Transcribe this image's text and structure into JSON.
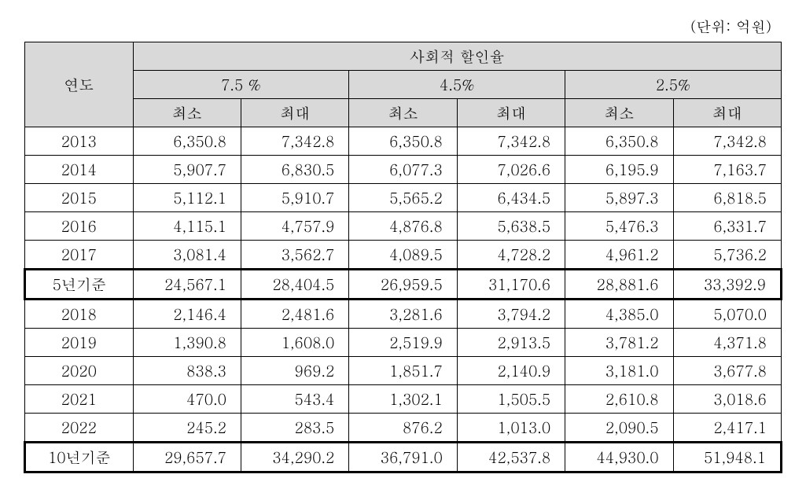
{
  "unit_label": "(단위: 억원)",
  "header": {
    "row_label": "연도",
    "group_label": "사회적 할인율",
    "rates": [
      "7.5 %",
      "4.5%",
      "2.5%"
    ],
    "sub": [
      "최소",
      "최대"
    ]
  },
  "rows": [
    {
      "year": "2013",
      "v": [
        "6,350.8",
        "7,342.8",
        "6,350.8",
        "7,342.8",
        "6,350.8",
        "7,342.8"
      ]
    },
    {
      "year": "2014",
      "v": [
        "5,907.7",
        "6,830.5",
        "6,077.3",
        "7,026.6",
        "6,195.9",
        "7,163.7"
      ]
    },
    {
      "year": "2015",
      "v": [
        "5,112.1",
        "5,910.7",
        "5,565.2",
        "6,434.5",
        "5,897.3",
        "6,818.5"
      ]
    },
    {
      "year": "2016",
      "v": [
        "4,115.1",
        "4,757.9",
        "4,876.8",
        "5,638.5",
        "5,476.3",
        "6,331.7"
      ]
    },
    {
      "year": "2017",
      "v": [
        "3,081.4",
        "3,562.7",
        "4,089.5",
        "4,728.2",
        "4,961.2",
        "5,736.2"
      ]
    },
    {
      "year": "5년기준",
      "v": [
        "24,567.1",
        "28,404.5",
        "26,959.5",
        "31,170.6",
        "28,881.6",
        "33,392.9"
      ],
      "hl": true
    },
    {
      "year": "2018",
      "v": [
        "2,146.4",
        "2,481.6",
        "3,281.6",
        "3,794.2",
        "4,385.0",
        "5,070.0"
      ]
    },
    {
      "year": "2019",
      "v": [
        "1,390.8",
        "1,608.0",
        "2,519.9",
        "2,913.5",
        "3,781.2",
        "4,371.8"
      ]
    },
    {
      "year": "2020",
      "v": [
        "838.3",
        "969.2",
        "1,851.7",
        "2,140.9",
        "3,181.0",
        "3,677.8"
      ]
    },
    {
      "year": "2021",
      "v": [
        "470.0",
        "543.4",
        "1,302.1",
        "1,505.5",
        "2,610.8",
        "3,018.6"
      ]
    },
    {
      "year": "2022",
      "v": [
        "245.2",
        "283.5",
        "876.2",
        "1,013.0",
        "2,090.5",
        "2,417.1"
      ]
    },
    {
      "year": "10년기준",
      "v": [
        "29,657.7",
        "34,290.2",
        "36,791.0",
        "42,537.8",
        "44,930.0",
        "51,948.1"
      ],
      "hl": true
    }
  ]
}
